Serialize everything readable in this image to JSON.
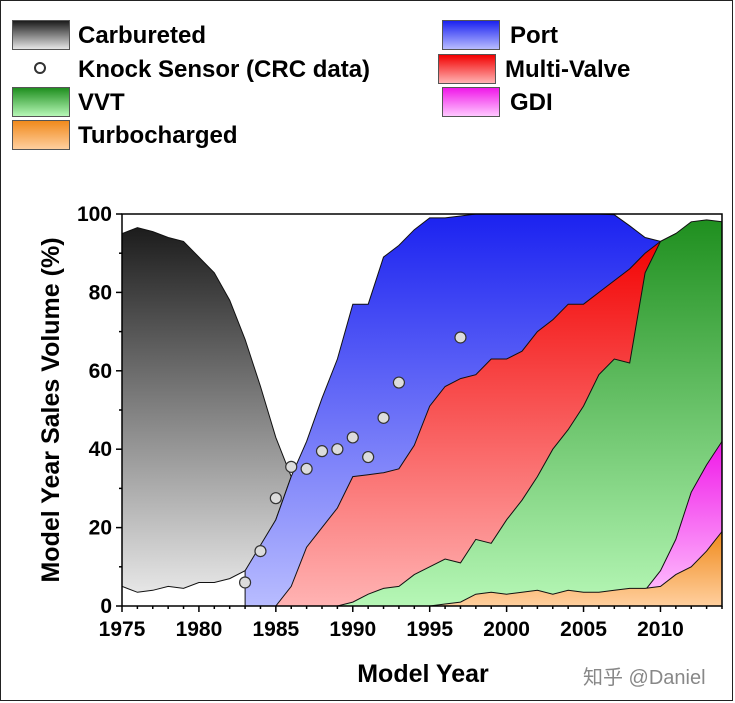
{
  "legend": {
    "items": [
      {
        "label": "Carbureted",
        "kind": "carb"
      },
      {
        "label": "Knock Sensor (CRC data)",
        "kind": "marker"
      },
      {
        "label": "VVT",
        "kind": "vvt"
      },
      {
        "label": "Turbocharged",
        "kind": "turbo"
      },
      {
        "label": "Port",
        "kind": "port"
      },
      {
        "label": "Multi-Valve",
        "kind": "multi"
      },
      {
        "label": "GDI",
        "kind": "gdi"
      }
    ]
  },
  "watermark": "知乎 @Daniel",
  "chart_data": {
    "type": "area",
    "title": "",
    "xlabel": "Model Year",
    "ylabel": "Model Year Sales Volume (%)",
    "xlim": [
      1975,
      2014
    ],
    "ylim": [
      0,
      100
    ],
    "x_ticks": [
      1975,
      1980,
      1985,
      1990,
      1995,
      2000,
      2005,
      2010
    ],
    "y_ticks": [
      0,
      20,
      40,
      60,
      80,
      100
    ],
    "colors": {
      "carb_top": "#1c1c1c",
      "carb_bottom": "#e6e6e6",
      "port_top": "#1b22f0",
      "port_bottom": "#b8bcff",
      "multi_top": "#f20000",
      "multi_bottom": "#ffb3b3",
      "vvt_top": "#1f8f1f",
      "vvt_bottom": "#b6f7b6",
      "gdi_top": "#f018e8",
      "gdi_bottom": "#ffc8ff",
      "turbo_top": "#f08a1c",
      "turbo_bottom": "#ffcf9e"
    },
    "series": [
      {
        "name": "Carbureted",
        "key": "carb",
        "x": [
          1975,
          1976,
          1977,
          1978,
          1979,
          1980,
          1981,
          1982,
          1983,
          1984,
          1985,
          1986
        ],
        "upper": [
          95,
          96.5,
          95.5,
          94,
          93,
          89,
          85,
          78,
          68,
          56,
          43,
          33
        ],
        "lower": [
          5,
          3.5,
          4,
          5,
          4.5,
          6,
          6,
          7,
          9,
          14,
          22,
          33
        ]
      },
      {
        "name": "Port",
        "key": "port",
        "x": [
          1983,
          1985,
          1986,
          1987,
          1988,
          1989,
          1990,
          1991,
          1992,
          1993,
          1994,
          1995,
          1996,
          1997,
          1998,
          2000,
          2002,
          2004,
          2006,
          2007,
          2008,
          2009,
          2010
        ],
        "upper": [
          9,
          22,
          33,
          42,
          53,
          63,
          77,
          77,
          89,
          92,
          96,
          99,
          99,
          99.5,
          100,
          100,
          100,
          100,
          100,
          99.8,
          97,
          94,
          93
        ]
      },
      {
        "name": "Multi-Valve",
        "key": "multi",
        "x": [
          1984,
          1985,
          1986,
          1987,
          1988,
          1989,
          1990,
          1991,
          1992,
          1993,
          1994,
          1995,
          1996,
          1997,
          1998,
          1999,
          2000,
          2001,
          2002,
          2003,
          2004,
          2005,
          2006,
          2007,
          2008,
          2009,
          2010,
          2011
        ],
        "upper": [
          0,
          0,
          5,
          15,
          20,
          25,
          33,
          33.5,
          34,
          35,
          41,
          51,
          56,
          58,
          59,
          63,
          63,
          65,
          70,
          73,
          77,
          77,
          80,
          83,
          86,
          90,
          93,
          95
        ]
      },
      {
        "name": "VVT",
        "key": "vvt",
        "x": [
          1989,
          1990,
          1991,
          1992,
          1993,
          1994,
          1995,
          1996,
          1997,
          1998,
          1999,
          2000,
          2001,
          2002,
          2003,
          2004,
          2005,
          2006,
          2007,
          2008,
          2009,
          2010,
          2011,
          2012,
          2013,
          2014
        ],
        "upper": [
          0,
          1,
          3,
          4.5,
          5,
          8,
          10,
          12,
          11,
          17,
          16,
          22,
          27,
          33,
          40,
          45,
          51,
          59,
          63,
          62,
          85,
          93,
          95,
          98,
          98.5,
          98
        ]
      },
      {
        "name": "GDI",
        "key": "gdi",
        "x": [
          2007,
          2008,
          2009,
          2010,
          2011,
          2012,
          2013,
          2014
        ],
        "upper": [
          0,
          0,
          4,
          9,
          17,
          29,
          36,
          42
        ]
      },
      {
        "name": "Turbocharged",
        "key": "turbo",
        "x": [
          1975,
          1995,
          1996,
          1997,
          1998,
          1999,
          2000,
          2001,
          2002,
          2003,
          2004,
          2005,
          2006,
          2007,
          2008,
          2009,
          2010,
          2011,
          2012,
          2013,
          2014
        ],
        "upper": [
          0,
          0,
          0.5,
          1,
          3,
          3.5,
          3,
          3.5,
          4,
          3,
          4,
          3.5,
          3.5,
          4,
          4.5,
          4.5,
          5,
          8,
          10,
          14,
          19
        ]
      }
    ],
    "knock_sensor": {
      "name": "Knock Sensor (CRC data)",
      "x": [
        1983,
        1984,
        1985,
        1986,
        1987,
        1988,
        1989,
        1990,
        1991,
        1992,
        1993,
        1997
      ],
      "y": [
        6,
        14,
        27.5,
        35.5,
        35,
        39.5,
        40,
        43,
        38,
        48,
        57,
        68.5
      ]
    }
  }
}
